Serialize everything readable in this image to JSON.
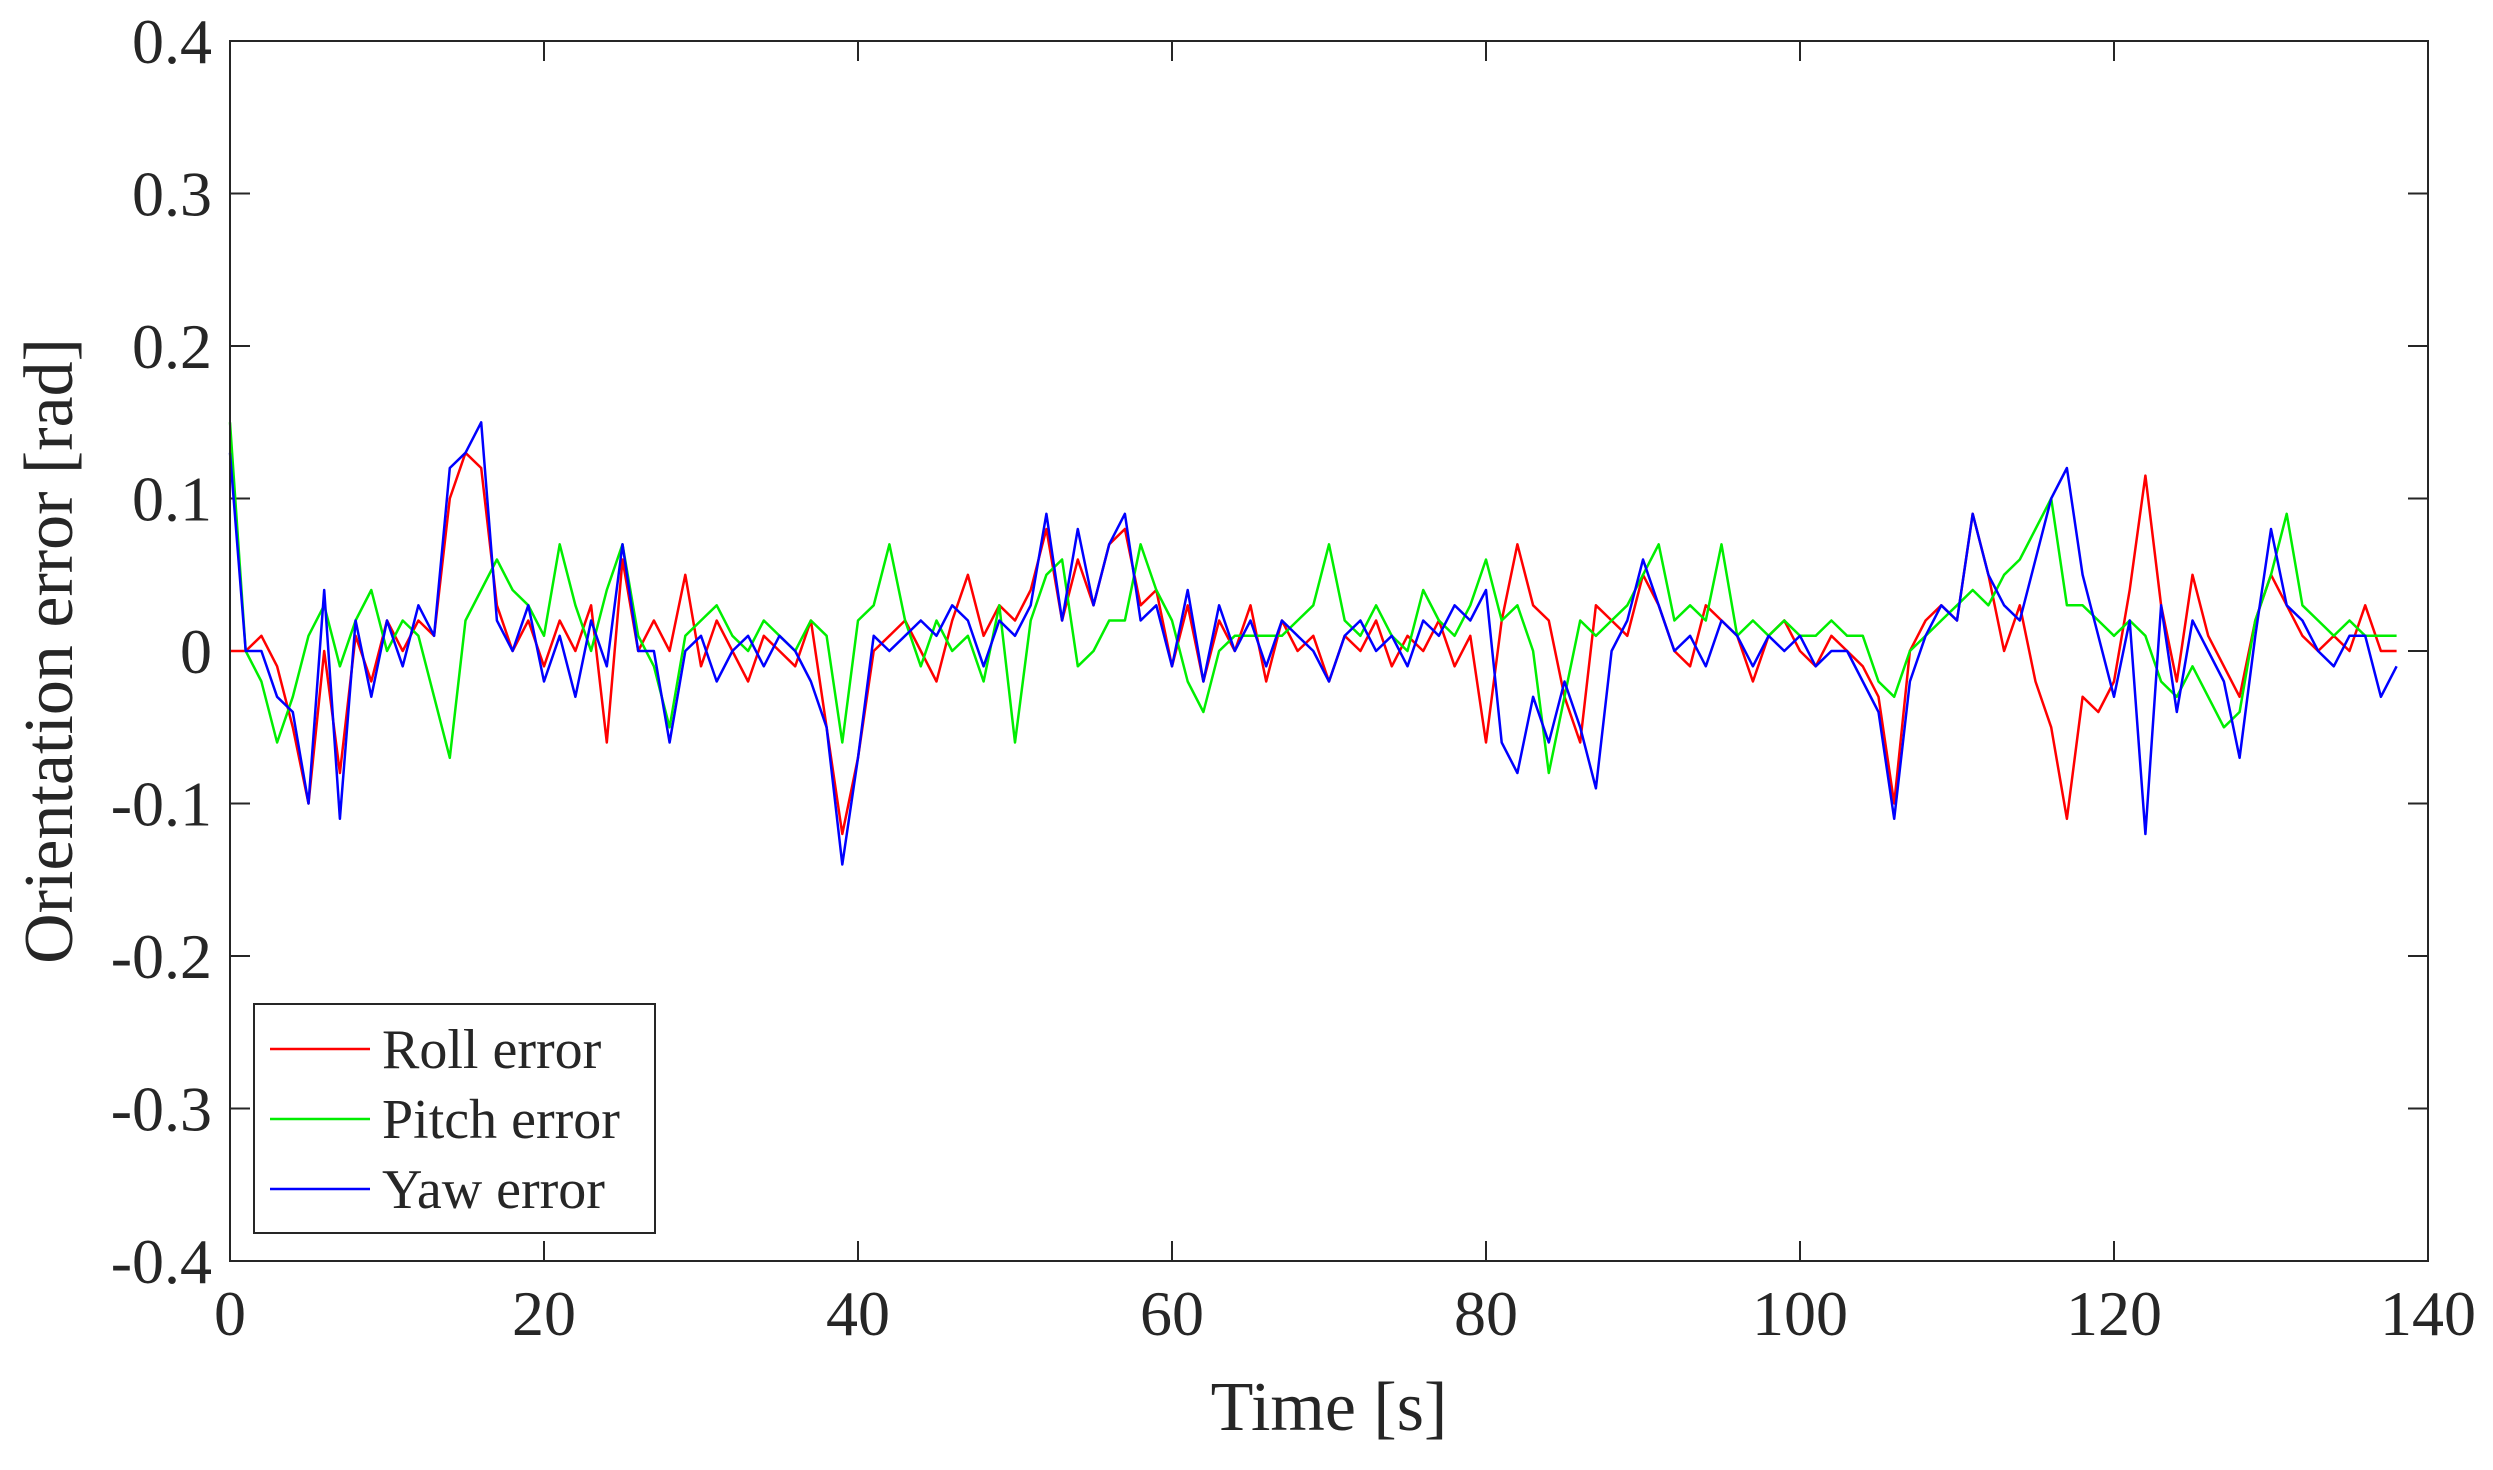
{
  "chart_data": {
    "type": "line",
    "xlabel": "Time [s]",
    "ylabel": "Orientation error [rad]",
    "x": [
      0,
      1,
      2,
      3,
      4,
      5,
      6,
      7,
      8,
      9,
      10,
      11,
      12,
      13,
      14,
      15,
      16,
      17,
      18,
      19,
      20,
      21,
      22,
      23,
      24,
      25,
      26,
      27,
      28,
      29,
      30,
      31,
      32,
      33,
      34,
      35,
      36,
      37,
      38,
      39,
      40,
      41,
      42,
      43,
      44,
      45,
      46,
      47,
      48,
      49,
      50,
      51,
      52,
      53,
      54,
      55,
      56,
      57,
      58,
      59,
      60,
      61,
      62,
      63,
      64,
      65,
      66,
      67,
      68,
      69,
      70,
      71,
      72,
      73,
      74,
      75,
      76,
      77,
      78,
      79,
      80,
      81,
      82,
      83,
      84,
      85,
      86,
      87,
      88,
      89,
      90,
      91,
      92,
      93,
      94,
      95,
      96,
      97,
      98,
      99,
      100,
      101,
      102,
      103,
      104,
      105,
      106,
      107,
      108,
      109,
      110,
      111,
      112,
      113,
      114,
      115,
      116,
      117,
      118,
      119,
      120,
      121,
      122,
      123,
      124,
      125,
      126,
      127,
      128,
      129,
      130,
      131,
      132,
      133,
      134,
      135,
      136,
      137,
      138
    ],
    "series": [
      {
        "name": "Roll error",
        "color": "#ff0000",
        "values": [
          0,
          0,
          0.01,
          -0.01,
          -0.05,
          -0.1,
          0,
          -0.08,
          0.01,
          -0.02,
          0.02,
          0,
          0.02,
          0.01,
          0.1,
          0.13,
          0.12,
          0.03,
          0,
          0.02,
          -0.01,
          0.02,
          0,
          0.03,
          -0.06,
          0.06,
          0,
          0.02,
          0,
          0.05,
          -0.01,
          0.02,
          0,
          -0.02,
          0.01,
          0,
          -0.01,
          0.02,
          -0.05,
          -0.12,
          -0.07,
          0,
          0.01,
          0.02,
          0,
          -0.02,
          0.02,
          0.05,
          0.01,
          0.03,
          0.02,
          0.04,
          0.08,
          0.02,
          0.06,
          0.03,
          0.07,
          0.08,
          0.03,
          0.04,
          -0.01,
          0.03,
          -0.02,
          0.02,
          0,
          0.03,
          -0.02,
          0.02,
          0,
          0.01,
          -0.02,
          0.01,
          0,
          0.02,
          -0.01,
          0.01,
          0,
          0.02,
          -0.01,
          0.01,
          -0.06,
          0.02,
          0.07,
          0.03,
          0.02,
          -0.03,
          -0.06,
          0.03,
          0.02,
          0.01,
          0.05,
          0.03,
          0,
          -0.01,
          0.03,
          0.02,
          0.01,
          -0.02,
          0.01,
          0.02,
          0,
          -0.01,
          0.01,
          0,
          -0.01,
          -0.03,
          -0.1,
          0,
          0.02,
          0.03,
          0.02,
          0.09,
          0.05,
          0,
          0.03,
          -0.02,
          -0.05,
          -0.11,
          -0.03,
          -0.04,
          -0.02,
          0.04,
          0.115,
          0.03,
          -0.02,
          0.05,
          0.01,
          -0.01,
          -0.03,
          0.02,
          0.05,
          0.03,
          0.01,
          0,
          0.01,
          0,
          0.03,
          0,
          0
        ]
      },
      {
        "name": "Pitch error",
        "color": "#00ee00",
        "values": [
          0.15,
          0,
          -0.02,
          -0.06,
          -0.03,
          0.01,
          0.03,
          -0.01,
          0.02,
          0.04,
          0,
          0.02,
          0.01,
          -0.03,
          -0.07,
          0.02,
          0.04,
          0.06,
          0.04,
          0.03,
          0.01,
          0.07,
          0.03,
          0,
          0.04,
          0.07,
          0.01,
          -0.01,
          -0.05,
          0.01,
          0.02,
          0.03,
          0.01,
          0,
          0.02,
          0.01,
          0,
          0.02,
          0.01,
          -0.06,
          0.02,
          0.03,
          0.07,
          0.02,
          -0.01,
          0.02,
          0,
          0.01,
          -0.02,
          0.03,
          -0.06,
          0.02,
          0.05,
          0.06,
          -0.01,
          0,
          0.02,
          0.02,
          0.07,
          0.04,
          0.02,
          -0.02,
          -0.04,
          0,
          0.01,
          0.01,
          0.01,
          0.01,
          0.02,
          0.03,
          0.07,
          0.02,
          0.01,
          0.03,
          0.01,
          0,
          0.04,
          0.02,
          0.01,
          0.03,
          0.06,
          0.02,
          0.03,
          0,
          -0.08,
          -0.03,
          0.02,
          0.01,
          0.02,
          0.03,
          0.05,
          0.07,
          0.02,
          0.03,
          0.02,
          0.07,
          0.01,
          0.02,
          0.01,
          0.02,
          0.01,
          0.01,
          0.02,
          0.01,
          0.01,
          -0.02,
          -0.03,
          0,
          0.01,
          0.02,
          0.03,
          0.04,
          0.03,
          0.05,
          0.06,
          0.08,
          0.1,
          0.03,
          0.03,
          0.02,
          0.01,
          0.02,
          0.01,
          -0.02,
          -0.03,
          -0.01,
          -0.03,
          -0.05,
          -0.04,
          0.02,
          0.05,
          0.09,
          0.03,
          0.02,
          0.01,
          0.02,
          0.01,
          0.01,
          0.01
        ]
      },
      {
        "name": "Yaw error",
        "color": "#0000ff",
        "values": [
          0.13,
          0,
          0,
          -0.03,
          -0.04,
          -0.1,
          0.04,
          -0.11,
          0.02,
          -0.03,
          0.02,
          -0.01,
          0.03,
          0.01,
          0.12,
          0.13,
          0.15,
          0.02,
          0,
          0.03,
          -0.02,
          0.01,
          -0.03,
          0.02,
          -0.01,
          0.07,
          0,
          0,
          -0.06,
          0,
          0.01,
          -0.02,
          0,
          0.01,
          -0.01,
          0.01,
          0,
          -0.02,
          -0.05,
          -0.14,
          -0.07,
          0.01,
          0,
          0.01,
          0.02,
          0.01,
          0.03,
          0.02,
          -0.01,
          0.02,
          0.01,
          0.03,
          0.09,
          0.02,
          0.08,
          0.03,
          0.07,
          0.09,
          0.02,
          0.03,
          -0.01,
          0.04,
          -0.02,
          0.03,
          0,
          0.02,
          -0.01,
          0.02,
          0.01,
          0,
          -0.02,
          0.01,
          0.02,
          0,
          0.01,
          -0.01,
          0.02,
          0.01,
          0.03,
          0.02,
          0.04,
          -0.06,
          -0.08,
          -0.03,
          -0.06,
          -0.02,
          -0.05,
          -0.09,
          0,
          0.02,
          0.06,
          0.03,
          0,
          0.01,
          -0.01,
          0.02,
          0.01,
          -0.01,
          0.01,
          0,
          0.01,
          -0.01,
          0,
          0,
          -0.02,
          -0.04,
          -0.11,
          -0.02,
          0.01,
          0.03,
          0.02,
          0.09,
          0.05,
          0.03,
          0.02,
          0.06,
          0.1,
          0.12,
          0.05,
          0.01,
          -0.03,
          0.02,
          -0.12,
          0.03,
          -0.04,
          0.02,
          0,
          -0.02,
          -0.07,
          0.01,
          0.08,
          0.03,
          0.02,
          0,
          -0.01,
          0.01,
          0.01,
          -0.03,
          -0.01
        ]
      }
    ],
    "xlim": [
      0,
      140
    ],
    "ylim": [
      -0.4,
      0.4
    ],
    "xticks": [
      0,
      20,
      40,
      60,
      80,
      100,
      120,
      140
    ],
    "yticks": [
      -0.4,
      -0.3,
      -0.2,
      -0.1,
      0,
      0.1,
      0.2,
      0.3,
      0.4
    ],
    "legend": "southwest",
    "grid": false
  }
}
